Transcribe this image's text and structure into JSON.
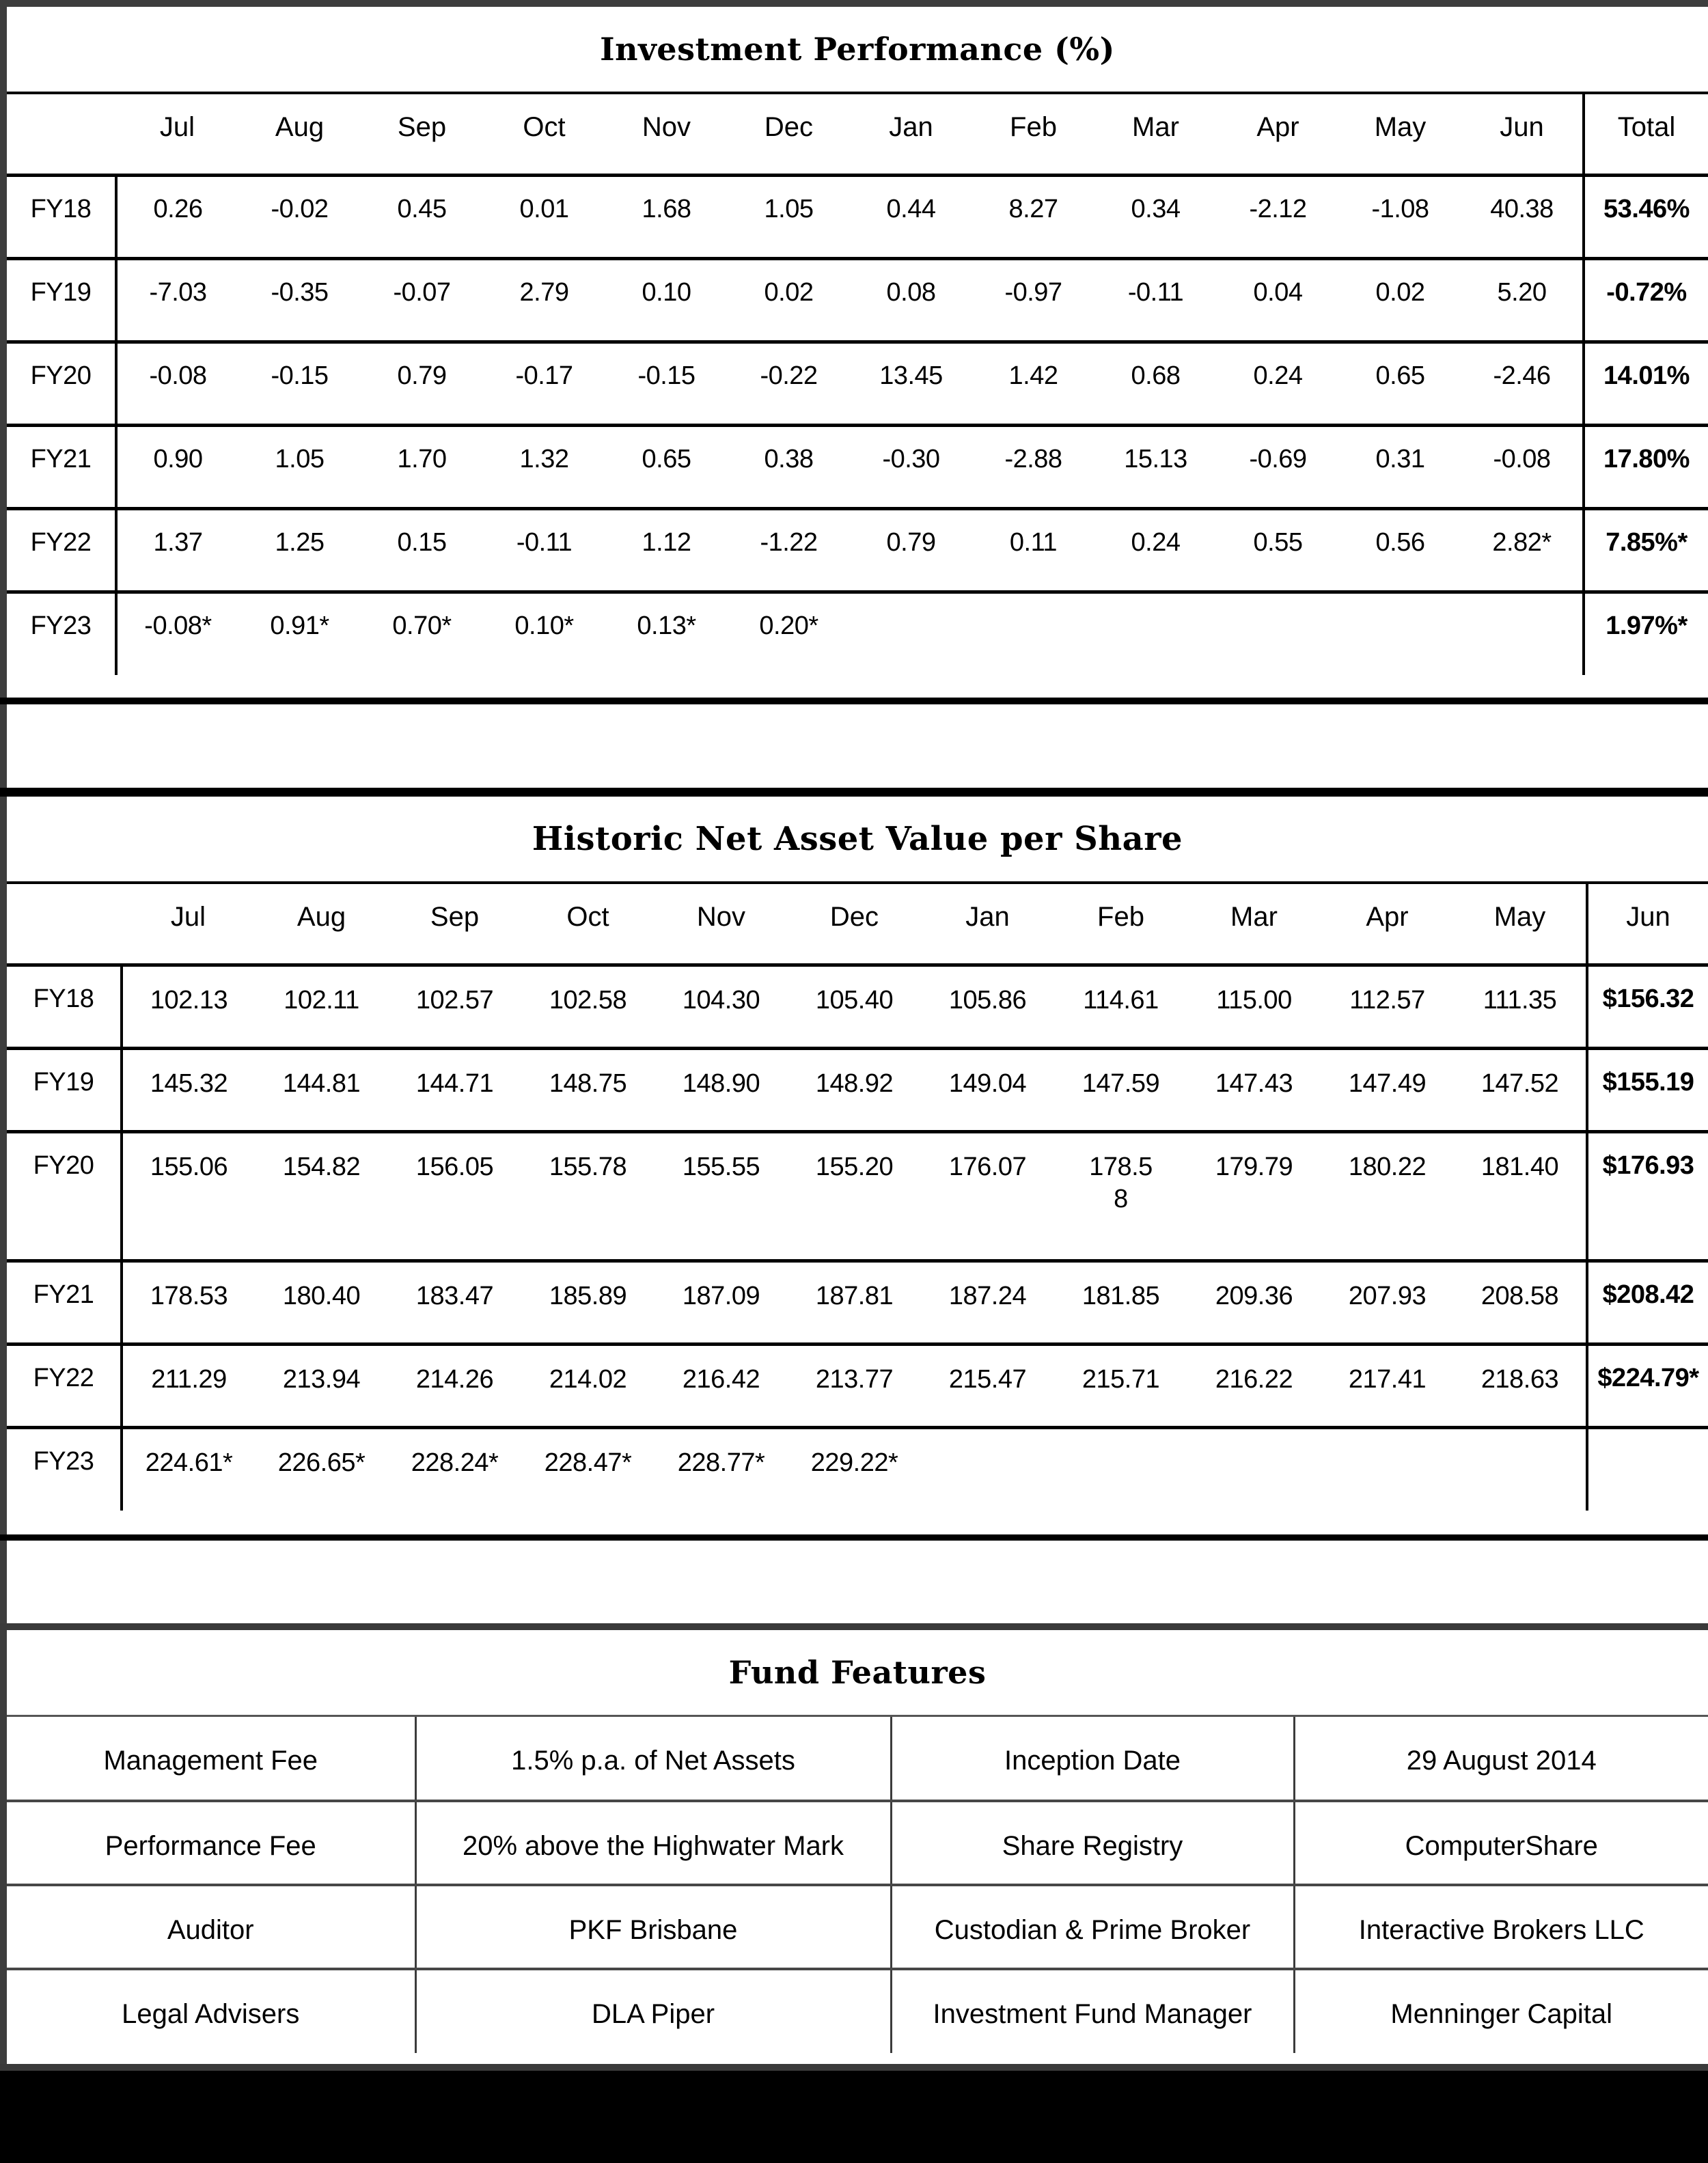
{
  "meta": {
    "frame_color": "#3d3d3d",
    "table_border_color": "#000000",
    "footer_bar_color": "#000000"
  },
  "performance_table": {
    "title": "Investment Performance (%)",
    "columns": [
      "Jul",
      "Aug",
      "Sep",
      "Oct",
      "Nov",
      "Dec",
      "Jan",
      "Feb",
      "Mar",
      "Apr",
      "May",
      "Jun",
      "Total"
    ],
    "rows": [
      {
        "label": "FY18",
        "values": [
          "0.26",
          "-0.02",
          "0.45",
          "0.01",
          "1.68",
          "1.05",
          "0.44",
          "8.27",
          "0.34",
          "-2.12",
          "-1.08",
          "40.38"
        ],
        "total": "53.46%"
      },
      {
        "label": "FY19",
        "values": [
          "-7.03",
          "-0.35",
          "-0.07",
          "2.79",
          "0.10",
          "0.02",
          "0.08",
          "-0.97",
          "-0.11",
          "0.04",
          "0.02",
          "5.20"
        ],
        "total": "-0.72%"
      },
      {
        "label": "FY20",
        "values": [
          "-0.08",
          "-0.15",
          "0.79",
          "-0.17",
          "-0.15",
          "-0.22",
          "13.45",
          "1.42",
          "0.68",
          "0.24",
          "0.65",
          "-2.46"
        ],
        "total": "14.01%"
      },
      {
        "label": "FY21",
        "values": [
          "0.90",
          "1.05",
          "1.70",
          "1.32",
          "0.65",
          "0.38",
          "-0.30",
          "-2.88",
          "15.13",
          "-0.69",
          "0.31",
          "-0.08"
        ],
        "total": "17.80%"
      },
      {
        "label": "FY22",
        "values": [
          "1.37",
          "1.25",
          "0.15",
          "-0.11",
          "1.12",
          "-1.22",
          "0.79",
          "0.11",
          "0.24",
          "0.55",
          "0.56",
          "2.82*"
        ],
        "total": "7.85%*"
      },
      {
        "label": "FY23",
        "values": [
          "-0.08*",
          "0.91*",
          "0.70*",
          "0.10*",
          "0.13*",
          "0.20*",
          "",
          "",
          "",
          "",
          "",
          ""
        ],
        "total": "1.97%*"
      }
    ]
  },
  "nav_table": {
    "title": "Historic Net Asset Value per Share",
    "columns": [
      "Jul",
      "Aug",
      "Sep",
      "Oct",
      "Nov",
      "Dec",
      "Jan",
      "Feb",
      "Mar",
      "Apr",
      "May",
      "Jun"
    ],
    "rows": [
      {
        "label": "FY18",
        "values": [
          "102.13",
          "102.11",
          "102.57",
          "102.58",
          "104.30",
          "105.40",
          "105.86",
          "114.61",
          "115.00",
          "112.57",
          "111.35"
        ],
        "jun": "$156.32"
      },
      {
        "label": "FY19",
        "values": [
          "145.32",
          "144.81",
          "144.71",
          "148.75",
          "148.90",
          "148.92",
          "149.04",
          "147.59",
          "147.43",
          "147.49",
          "147.52"
        ],
        "jun": "$155.19"
      },
      {
        "label": "FY20",
        "values": [
          "155.06",
          "154.82",
          "156.05",
          "155.78",
          "155.55",
          "155.20",
          "176.07",
          "178.5\n8",
          "179.79",
          "180.22",
          "181.40"
        ],
        "jun": "$176.93"
      },
      {
        "label": "FY21",
        "values": [
          "178.53",
          "180.40",
          "183.47",
          "185.89",
          "187.09",
          "187.81",
          "187.24",
          "181.85",
          "209.36",
          "207.93",
          "208.58"
        ],
        "jun": "$208.42"
      },
      {
        "label": "FY22",
        "values": [
          "211.29",
          "213.94",
          "214.26",
          "214.02",
          "216.42",
          "213.77",
          "215.47",
          "215.71",
          "216.22",
          "217.41",
          "218.63"
        ],
        "jun": "$224.79*"
      },
      {
        "label": "FY23",
        "values": [
          "224.61*",
          "226.65*",
          "228.24*",
          "228.47*",
          "228.77*",
          "229.22*",
          "",
          "",
          "",
          "",
          ""
        ],
        "jun": ""
      }
    ]
  },
  "fund_features": {
    "title": "Fund Features",
    "rows": [
      {
        "label": "Management Fee",
        "value": "1.5% p.a. of Net Assets",
        "label2": "Inception Date",
        "value2": "29 August 2014"
      },
      {
        "label": "Performance Fee",
        "value": "20% above the Highwater Mark",
        "label2": "Share Registry",
        "value2": "ComputerShare"
      },
      {
        "label": "Auditor",
        "value": "PKF Brisbane",
        "label2": "Custodian & Prime Broker",
        "value2": "Interactive Brokers LLC"
      },
      {
        "label": "Legal Advisers",
        "value": "DLA Piper",
        "label2": "Investment Fund Manager",
        "value2": "Menninger Capital"
      }
    ]
  }
}
